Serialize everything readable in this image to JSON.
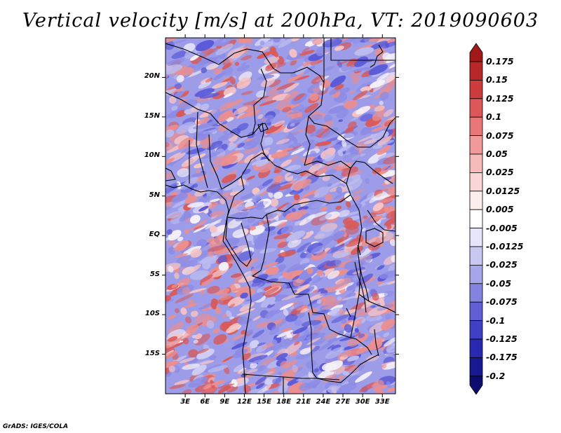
{
  "title": "Vertical velocity [m/s] at 200hPa, VT: 2019090603",
  "credit": "GrADS: IGES/COLA",
  "lat_labels": [
    "20N",
    "15N",
    "10N",
    "5N",
    "EQ",
    "5S",
    "10S",
    "15S"
  ],
  "lat_values": [
    20,
    15,
    10,
    5,
    0,
    -5,
    -10,
    -15
  ],
  "lon_labels": [
    "3E",
    "6E",
    "9E",
    "12E",
    "15E",
    "18E",
    "21E",
    "24E",
    "27E",
    "30E",
    "33E"
  ],
  "lon_values": [
    3,
    6,
    9,
    12,
    15,
    18,
    21,
    24,
    27,
    30,
    33
  ],
  "colorbar": {
    "labels": [
      "0.175",
      "0.15",
      "0.125",
      "0.1",
      "0.075",
      "0.05",
      "0.025",
      "0.0125",
      "0.005",
      "-0.005",
      "-0.0125",
      "-0.025",
      "-0.05",
      "-0.075",
      "-0.1",
      "-0.125",
      "-0.175",
      "-0.2"
    ],
    "colors": [
      "#a01818",
      "#b82828",
      "#cc3c3c",
      "#dc5858",
      "#e87878",
      "#f09a9a",
      "#f6baba",
      "#fad6d6",
      "#fdeeee",
      "#ffffff",
      "#e6e6fa",
      "#c8c8f2",
      "#a6a6ea",
      "#8484e0",
      "#6060d4",
      "#4040c4",
      "#2828b0",
      "#181890",
      "#0c0c6e"
    ]
  },
  "map": {
    "lon_range": [
      0,
      35
    ],
    "lat_range": [
      -20,
      25
    ],
    "field_colors": {
      "strong_negative": "#5a5ad8",
      "negative": "#8c8ce6",
      "weak_negative": "#bcbcf0",
      "neutral": "#f4f0f8",
      "weak_positive": "#f6c4c4",
      "positive": "#ec8e8e",
      "strong_positive": "#d85a5a"
    }
  }
}
